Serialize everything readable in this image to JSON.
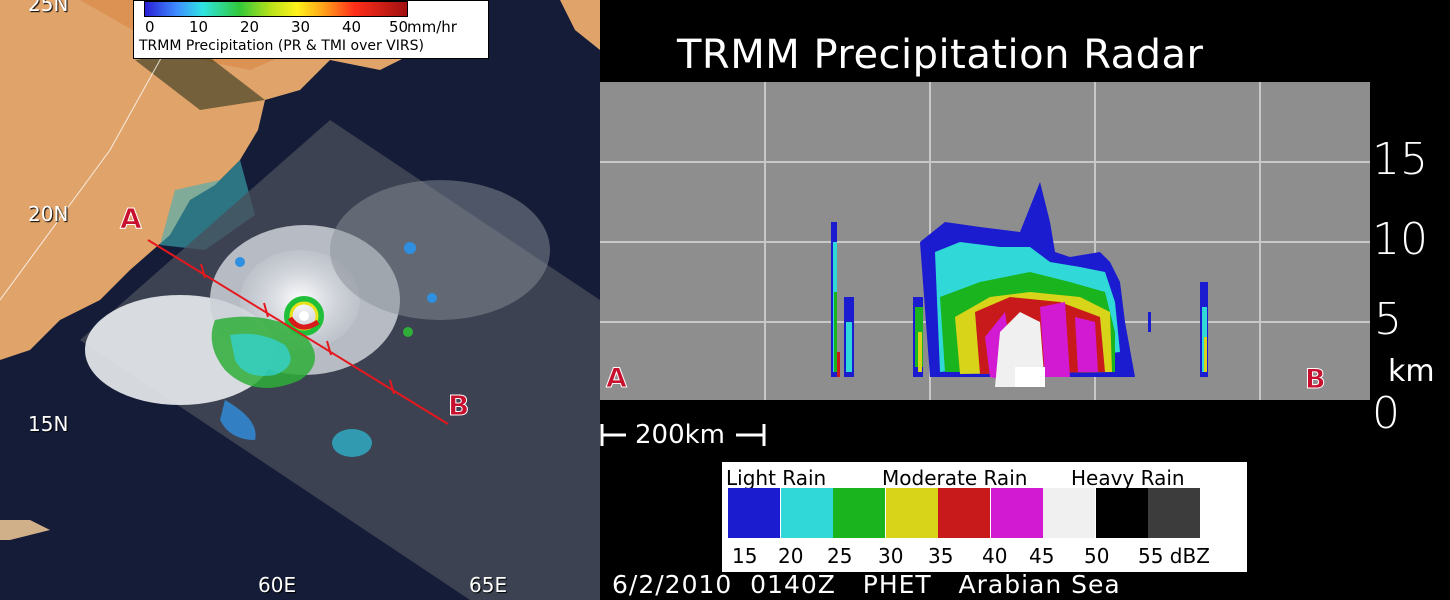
{
  "map": {
    "lat_labels": [
      "25N",
      "20N",
      "15N"
    ],
    "lon_labels": [
      "60E",
      "65E"
    ],
    "point_a": "A",
    "point_b": "B",
    "legend": {
      "ticks": [
        "0",
        "10",
        "20",
        "30",
        "40",
        "50"
      ],
      "unit": "mm/hr",
      "title": "TRMM Precipitation  (PR & TMI  over VIRS)"
    }
  },
  "radar": {
    "title": "TRMM Precipitation Radar",
    "height_ticks": [
      "15",
      "10",
      "5",
      "0"
    ],
    "height_unit": "km",
    "point_a": "A",
    "point_b": "B",
    "scale_bar": "200km",
    "legend": {
      "categories": [
        "Light Rain",
        "Moderate Rain",
        "Heavy Rain"
      ],
      "ticks": [
        "15",
        "20",
        "25",
        "30",
        "35",
        "40",
        "45",
        "50",
        "55 dBZ"
      ],
      "colors": [
        "#1b1bd0",
        "#30d8d8",
        "#19b41e",
        "#d8d41a",
        "#c81a1a",
        "#d21ad2",
        "#f0f0f0",
        "#000000",
        "#3c3c3c"
      ]
    }
  },
  "footer": "6/2/2010  0140Z   PHET   Arabian Sea"
}
